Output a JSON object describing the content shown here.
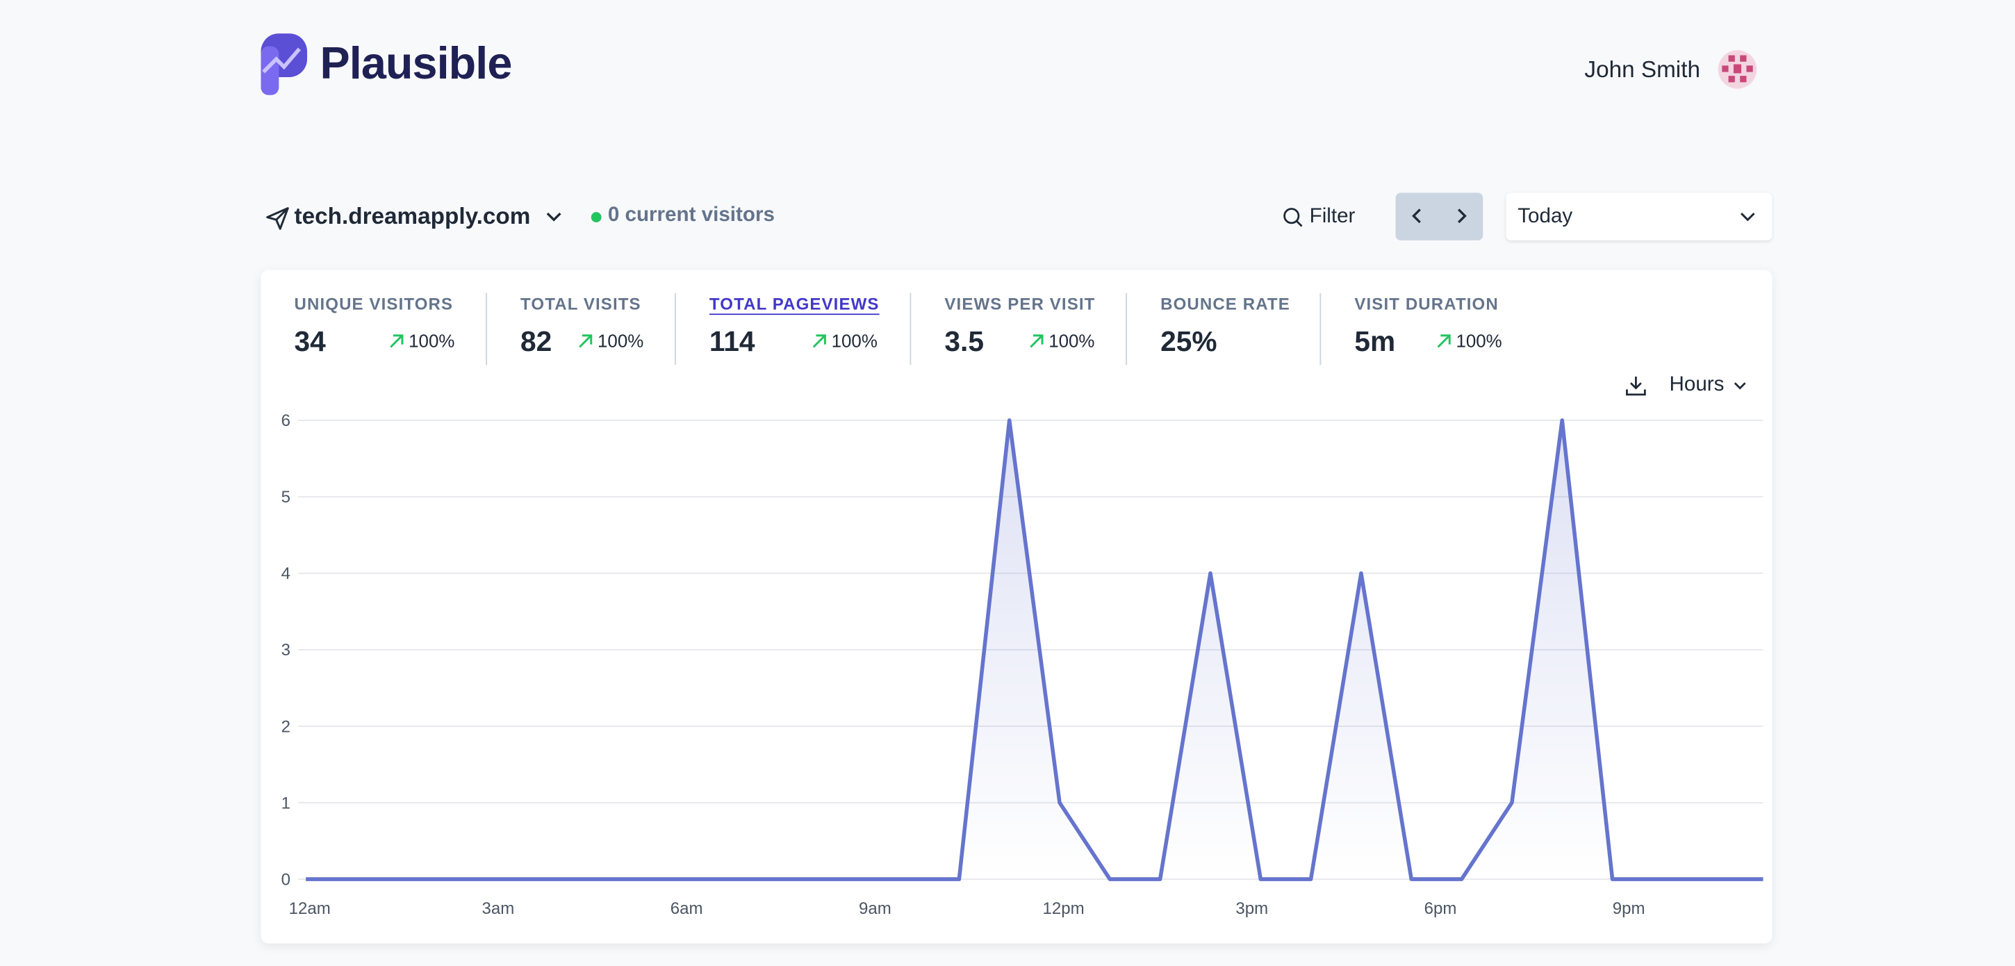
{
  "header": {
    "logo": "Plausible",
    "user": "John Smith"
  },
  "toolbar": {
    "site": "tech.dreamapply.com",
    "current_visitors": "0 current visitors",
    "filter": "Filter",
    "period": "Today"
  },
  "stats": [
    {
      "label": "UNIQUE VISITORS",
      "value": "34",
      "change": "100%"
    },
    {
      "label": "TOTAL VISITS",
      "value": "82",
      "change": "100%"
    },
    {
      "label": "TOTAL PAGEVIEWS",
      "value": "114",
      "change": "100%"
    },
    {
      "label": "VIEWS PER VISIT",
      "value": "3.5",
      "change": "100%"
    },
    {
      "label": "BOUNCE RATE",
      "value": "25%"
    },
    {
      "label": "VISIT DURATION",
      "value": "5m",
      "change": "100%"
    }
  ],
  "interval": "Hours",
  "chart_data": {
    "type": "line",
    "x": [
      0,
      0.8,
      1.6,
      2.4,
      3.2,
      4,
      4.8,
      5.6,
      6.4,
      7.2,
      8,
      8.8,
      9.6,
      10.4,
      11.2,
      12,
      12.8,
      13.6,
      14.4,
      15.2,
      16,
      16.8,
      17.6,
      18.4,
      19.2,
      20,
      20.8,
      21.6,
      22.4,
      23.2
    ],
    "values": [
      0,
      0,
      0,
      0,
      0,
      0,
      0,
      0,
      0,
      0,
      0,
      0,
      0,
      0,
      6,
      1,
      0,
      0,
      4,
      0,
      0,
      4,
      0,
      0,
      1,
      6,
      0,
      0,
      0,
      0
    ],
    "color": "#6574cd",
    "xlim": [
      0,
      23.2
    ],
    "ylim": [
      0,
      6
    ],
    "yticks": [
      0,
      1,
      2,
      3,
      4,
      5,
      6
    ],
    "xticks": [
      {
        "value": 0,
        "label": "12am"
      },
      {
        "value": 3,
        "label": "3am"
      },
      {
        "value": 6,
        "label": "6am"
      },
      {
        "value": 9,
        "label": "9am"
      },
      {
        "value": 12,
        "label": "12pm"
      },
      {
        "value": 15,
        "label": "3pm"
      },
      {
        "value": 18,
        "label": "6pm"
      },
      {
        "value": 21,
        "label": "9pm"
      }
    ],
    "grid": true
  }
}
